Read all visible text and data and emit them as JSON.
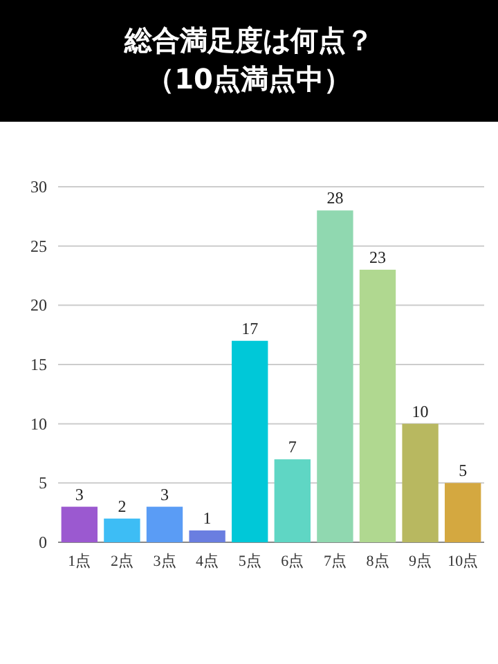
{
  "chart_data": {
    "type": "bar",
    "title": "総合満足度は何点？",
    "subtitle": "（10点満点中）",
    "categories": [
      "1点",
      "2点",
      "3点",
      "4点",
      "5点",
      "6点",
      "7点",
      "8点",
      "9点",
      "10点"
    ],
    "values": [
      3,
      2,
      3,
      1,
      17,
      7,
      28,
      23,
      10,
      5
    ],
    "colors": [
      "#9b59d0",
      "#3dbdf5",
      "#5a9cf5",
      "#6a7ee0",
      "#00c8d8",
      "#5fd6c4",
      "#90d8b0",
      "#b0d890",
      "#b8b860",
      "#d4a840"
    ],
    "ylim": [
      0,
      30
    ],
    "yticks": [
      0,
      5,
      10,
      15,
      20,
      25,
      30
    ],
    "grid": "y",
    "data_labels": true
  }
}
